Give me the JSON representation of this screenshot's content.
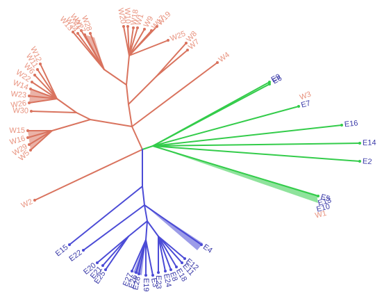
{
  "colors": {
    "w": "#d9735e",
    "wLabel": "#e8937f",
    "green": "#33cc4a",
    "blue": "#4b4bd6",
    "blueLabel": "#3a3aa8"
  },
  "tree": {
    "clades": [
      {
        "id": "W",
        "color": "#d9735e",
        "labelColor": "#e8937f",
        "tips": [
          "W1",
          "W2",
          "W3",
          "W4",
          "W5",
          "W6",
          "W7",
          "W8",
          "W9",
          "W10",
          "W11",
          "W12",
          "W13",
          "W14",
          "W15",
          "W16",
          "W17",
          "W18",
          "W19",
          "W20",
          "W21",
          "W22",
          "W23",
          "W24",
          "W25",
          "W26",
          "W27",
          "W28",
          "W29",
          "W30"
        ]
      },
      {
        "id": "E-green",
        "color": "#33cc4a",
        "labelColor": "#3a3aa8",
        "tips": [
          "E9",
          "E6",
          "E7",
          "E16",
          "E14",
          "E2",
          "E5",
          "E13",
          "E10"
        ]
      },
      {
        "id": "E-blue",
        "color": "#4b4bd6",
        "labelColor": "#3a3aa8",
        "tips": [
          "E15",
          "E22",
          "E20",
          "E21",
          "E25",
          "E27",
          "E26",
          "E28",
          "E19",
          "E3",
          "E23",
          "E24",
          "E8",
          "E18",
          "E11",
          "E12",
          "E4",
          "E1"
        ]
      }
    ]
  }
}
